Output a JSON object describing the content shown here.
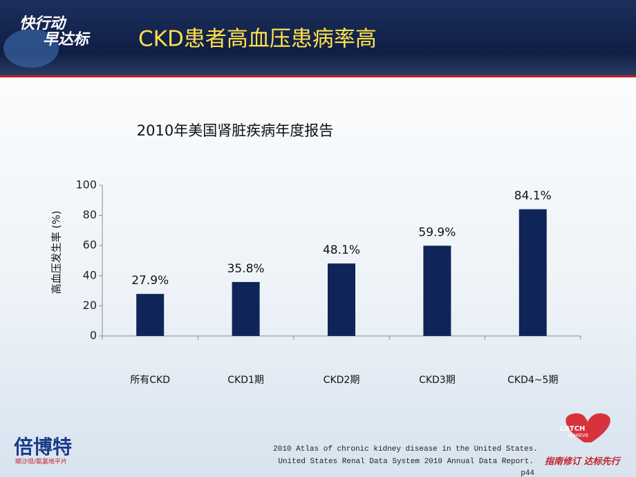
{
  "header": {
    "title": "CKD患者高血压患病率高",
    "logo_line1": "快行动",
    "logo_line2": "早达标"
  },
  "chart_data": {
    "type": "bar",
    "title": "2010年美国肾脏疾病年度报告",
    "y_label": "高血压发生率 (%)",
    "categories": [
      "所有CKD",
      "CKD1期",
      "CKD2期",
      "CKD3期",
      "CKD4~5期"
    ],
    "values": [
      27.9,
      35.8,
      48.1,
      59.9,
      84.1
    ],
    "value_labels": [
      "27.9%",
      "35.8%",
      "48.1%",
      "59.9%",
      "84.1%"
    ],
    "color": "#0f2557",
    "ylim": [
      0,
      100
    ],
    "yticks": [
      0,
      20,
      40,
      60,
      80,
      100
    ],
    "grid": false
  },
  "footer": {
    "source_line1": "2010 Atlas of chronic kidney disease in the United States.",
    "source_line2": "United States Renal Data System  2010  Annual  Data Report.",
    "page": "p44",
    "brand": "倍博特",
    "brand_sub": "缬沙坦/氨氯地平片",
    "badge_top": "CATCH",
    "badge_bottom": "ACHIEVE",
    "slogan": "指南修订 达标先行"
  }
}
